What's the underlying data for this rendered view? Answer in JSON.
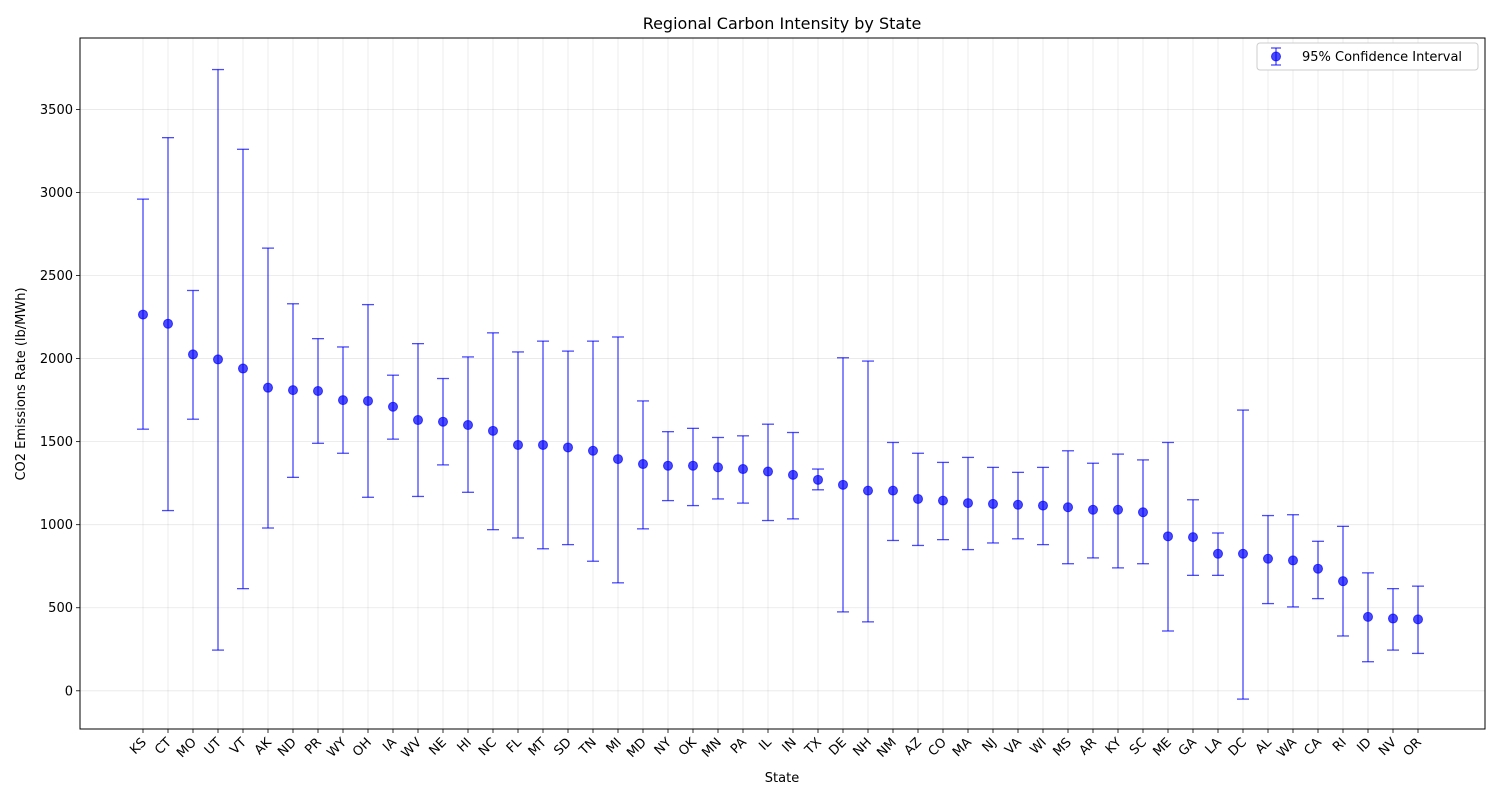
{
  "chart_data": {
    "type": "scatter",
    "title": "Regional Carbon Intensity by State",
    "xlabel": "State",
    "ylabel": "CO2 Emissions Rate (lb/MWh)",
    "ylim": [
      -230,
      3930
    ],
    "yticks": [
      0,
      500,
      1000,
      1500,
      2000,
      2500,
      3000,
      3500
    ],
    "grid": true,
    "legend_position": "top-right",
    "color": "#0000ff",
    "categories": [
      "KS",
      "CT",
      "MO",
      "UT",
      "VT",
      "AK",
      "ND",
      "PR",
      "WY",
      "OH",
      "IA",
      "WV",
      "NE",
      "HI",
      "NC",
      "FL",
      "MT",
      "SD",
      "TN",
      "MI",
      "MD",
      "NY",
      "OK",
      "MN",
      "PA",
      "IL",
      "IN",
      "TX",
      "DE",
      "NH",
      "NM",
      "AZ",
      "CO",
      "MA",
      "NJ",
      "VA",
      "WI",
      "MS",
      "AR",
      "KY",
      "SC",
      "ME",
      "GA",
      "LA",
      "DC",
      "AL",
      "WA",
      "CA",
      "RI",
      "ID",
      "NV",
      "OR"
    ],
    "series": [
      {
        "name": "95% Confidence Interval",
        "values": [
          2265,
          2210,
          2025,
          1995,
          1940,
          1825,
          1810,
          1805,
          1750,
          1745,
          1710,
          1630,
          1620,
          1600,
          1565,
          1480,
          1480,
          1465,
          1445,
          1395,
          1365,
          1355,
          1355,
          1345,
          1335,
          1320,
          1300,
          1270,
          1240,
          1205,
          1205,
          1155,
          1145,
          1130,
          1125,
          1120,
          1115,
          1105,
          1090,
          1090,
          1075,
          930,
          925,
          825,
          825,
          795,
          785,
          735,
          660,
          445,
          435,
          430
        ],
        "lower": [
          1575,
          1085,
          1635,
          245,
          615,
          980,
          1285,
          1490,
          1430,
          1165,
          1515,
          1170,
          1360,
          1195,
          970,
          920,
          855,
          880,
          780,
          650,
          975,
          1145,
          1115,
          1155,
          1130,
          1025,
          1035,
          1210,
          475,
          415,
          905,
          875,
          910,
          850,
          890,
          915,
          880,
          765,
          800,
          740,
          765,
          360,
          695,
          695,
          -50,
          525,
          505,
          555,
          330,
          175,
          245,
          225
        ],
        "upper": [
          2960,
          3330,
          2410,
          3740,
          3260,
          2665,
          2330,
          2120,
          2070,
          2325,
          1900,
          2090,
          1880,
          2010,
          2155,
          2040,
          2105,
          2045,
          2105,
          2130,
          1745,
          1560,
          1580,
          1525,
          1535,
          1605,
          1555,
          1335,
          2005,
          1985,
          1495,
          1430,
          1375,
          1405,
          1345,
          1315,
          1345,
          1445,
          1370,
          1425,
          1390,
          1495,
          1150,
          950,
          1690,
          1055,
          1060,
          900,
          990,
          710,
          615,
          630
        ]
      }
    ]
  }
}
